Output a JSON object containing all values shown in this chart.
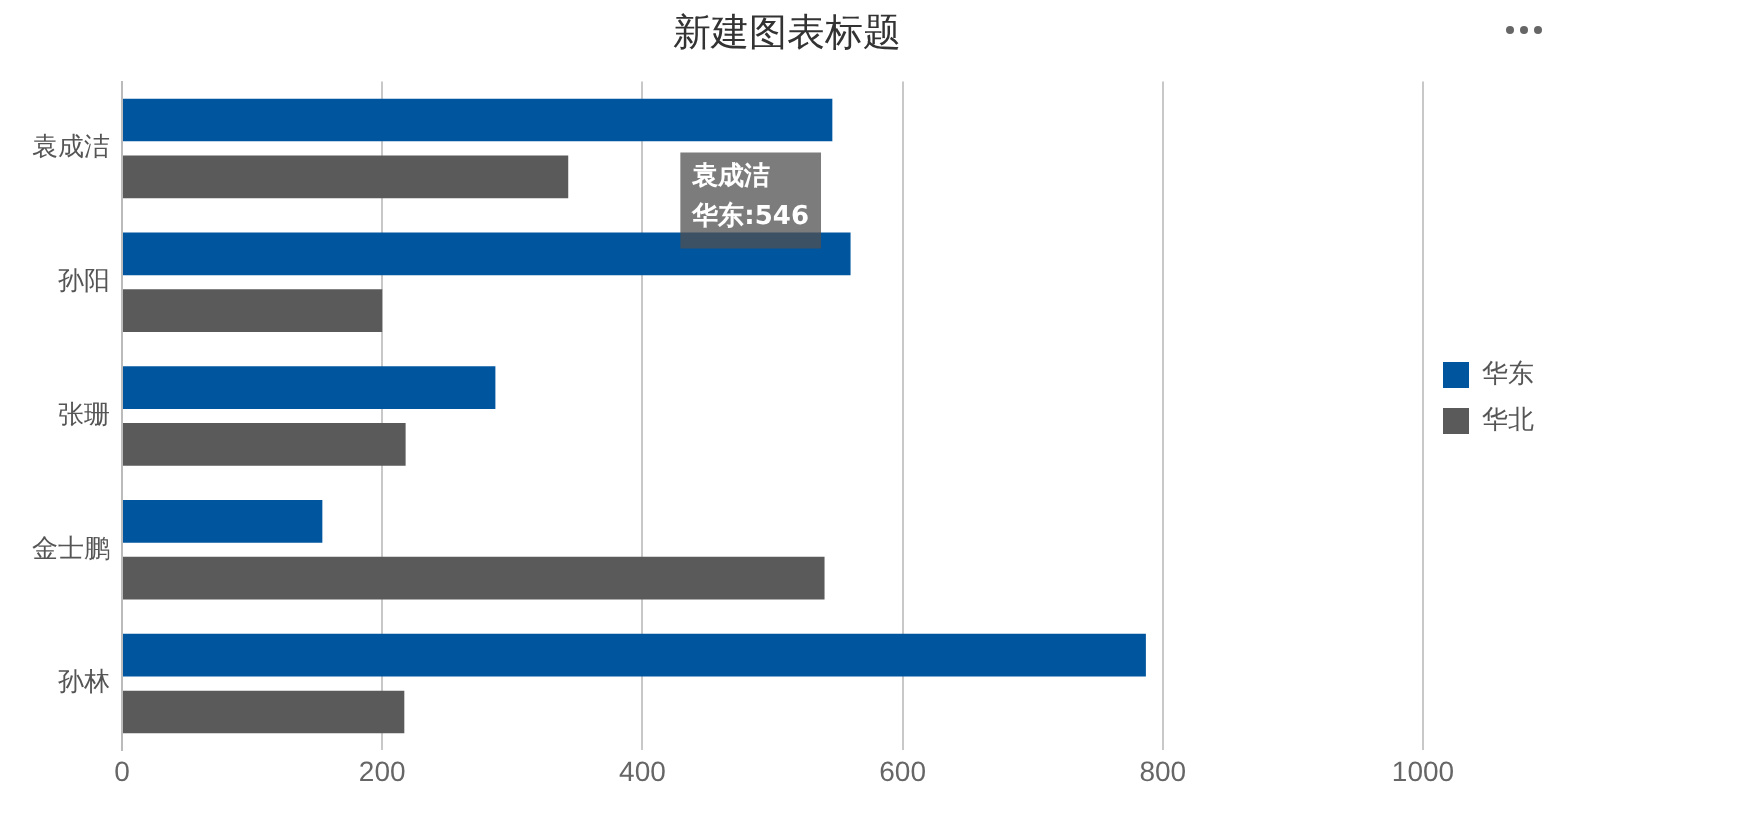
{
  "chart_data": {
    "type": "bar",
    "orientation": "horizontal",
    "title": "新建图表标题",
    "categories": [
      "袁成洁",
      "孙阳",
      "张珊",
      "金士鹏",
      "孙林"
    ],
    "series": [
      {
        "name": "华东",
        "color": "#00559f",
        "values": [
          546,
          560,
          287,
          154,
          787
        ]
      },
      {
        "name": "华北",
        "color": "#5a5a5a",
        "values": [
          343,
          200,
          218,
          540,
          217
        ]
      }
    ],
    "xlim": [
      0,
      1000
    ],
    "xticks": [
      0,
      200,
      400,
      600,
      800,
      1000
    ],
    "grid": "x",
    "legend": "right",
    "annotations": [
      {
        "text": "袁成洁",
        "x": 546,
        "y": "袁成洁"
      },
      {
        "text": "华东:546",
        "x": 546,
        "y": "袁成洁"
      }
    ]
  }
}
